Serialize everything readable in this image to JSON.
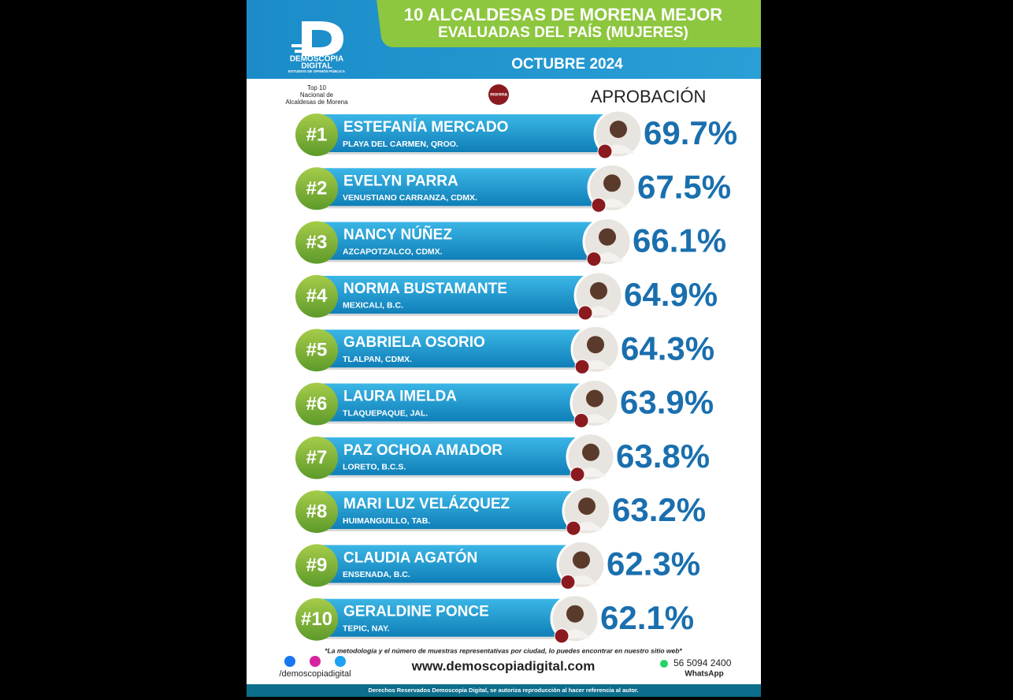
{
  "header": {
    "brand": "DEMOSCOPIA",
    "brand2": "DIGITAL",
    "brand_sub": "ESTUDIOS DE OPINIÓN PÚBLICA",
    "title_line1": "10 ALCALDESAS DE MORENA MEJOR",
    "title_line2": "EVALUADAS DEL PAÍS (MUJERES)",
    "date": "OCTUBRE 2024"
  },
  "intro": {
    "top_lines": [
      "Top 10",
      "Nacional de",
      "Alcaldesas de Morena"
    ],
    "party": "morena",
    "column_label": "APROBACIÓN"
  },
  "rows": [
    {
      "rank": "#1",
      "name": "ESTEFANÍA MERCADO",
      "place": "PLAYA DEL CARMEN, QROO.",
      "approval": "69.7%"
    },
    {
      "rank": "#2",
      "name": "EVELYN PARRA",
      "place": "VENUSTIANO CARRANZA, CDMX.",
      "approval": "67.5%"
    },
    {
      "rank": "#3",
      "name": "NANCY NÚÑEZ",
      "place": "AZCAPOTZALCO, CDMX.",
      "approval": "66.1%"
    },
    {
      "rank": "#4",
      "name": "NORMA BUSTAMANTE",
      "place": "MEXICALI, B.C.",
      "approval": "64.9%"
    },
    {
      "rank": "#5",
      "name": "GABRIELA OSORIO",
      "place": "TLALPAN, CDMX.",
      "approval": "64.3%"
    },
    {
      "rank": "#6",
      "name": "LAURA IMELDA",
      "place": "TLAQUEPAQUE, JAL.",
      "approval": "63.9%"
    },
    {
      "rank": "#7",
      "name": "PAZ OCHOA AMADOR",
      "place": "LORETO, B.C.S.",
      "approval": "63.8%"
    },
    {
      "rank": "#8",
      "name": "MARI LUZ VELÁZQUEZ",
      "place": "HUIMANGUILLO, TAB.",
      "approval": "63.2%"
    },
    {
      "rank": "#9",
      "name": "CLAUDIA AGATÓN",
      "place": "ENSENADA, B.C.",
      "approval": "62.3%"
    },
    {
      "rank": "#10",
      "name": "GERALDINE PONCE",
      "place": "TEPIC, NAY.",
      "approval": "62.1%"
    }
  ],
  "footer": {
    "note": "*La metodología y el número de muestras representativas por ciudad, lo puedes encontrar en nuestro sitio web*",
    "social_handle": "/demoscopiadigital",
    "website": "www.demoscopiadigital.com",
    "phone": "56 5094 2400",
    "phone_label": "WhatsApp",
    "rights": "Derechos Reservados Demoscopia Digital, se autoriza reproducción al hacer referencia al autor."
  }
}
